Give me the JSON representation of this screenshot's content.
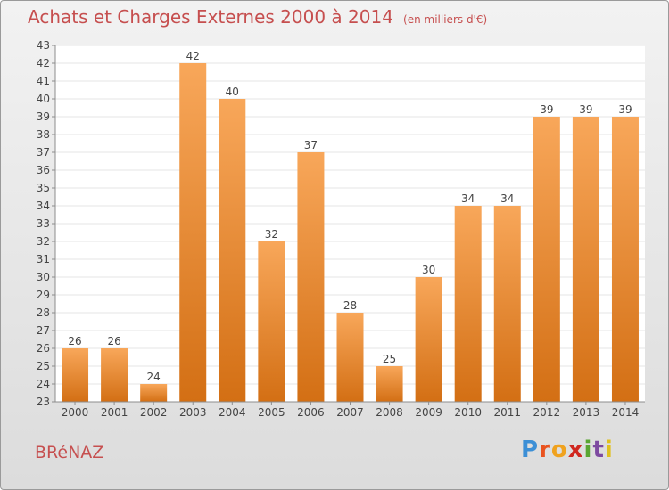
{
  "header": {
    "title": "Achats et Charges Externes 2000 à 2014",
    "unit": "(en milliers d'€)"
  },
  "footer": {
    "commune": "BRéNAZ",
    "brand_letters": [
      "P",
      "r",
      "o",
      "x",
      "i",
      "t",
      "i"
    ],
    "brand_colors": [
      "#3c8fd6",
      "#e9531f",
      "#f0a21e",
      "#d0271f",
      "#5aa532",
      "#7d4aa0",
      "#e0c020"
    ]
  },
  "colors": {
    "title": "#c64f4f",
    "bar_top": "#f8a75a",
    "bar_bottom": "#d36f14",
    "axis": "#8c8c8c",
    "grid": "#e6e6e6"
  },
  "chart_data": {
    "type": "bar",
    "categories": [
      "2000",
      "2001",
      "2002",
      "2003",
      "2004",
      "2005",
      "2006",
      "2007",
      "2008",
      "2009",
      "2010",
      "2011",
      "2012",
      "2013",
      "2014"
    ],
    "values": [
      26,
      26,
      24,
      42,
      40,
      32,
      37,
      28,
      25,
      30,
      34,
      34,
      39,
      39,
      39
    ],
    "title": "Achats et Charges Externes 2000 à 2014",
    "ylim": [
      23,
      43
    ],
    "yticks": [
      "23",
      "24",
      "25",
      "26",
      "27",
      "28",
      "29",
      "30",
      "31",
      "32",
      "33",
      "34",
      "35",
      "36",
      "37",
      "38",
      "39",
      "40",
      "41",
      "42",
      "43"
    ],
    "grid": true,
    "data_labels": true
  }
}
